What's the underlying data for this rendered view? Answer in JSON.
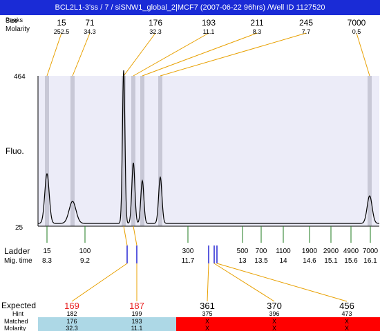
{
  "title": "BCL2L1-3'ss / 7 / siSNW1_global_2|MCF7 (2007-06-22 96hrs) /Well ID 1127520",
  "top_labels": {
    "size": "Size",
    "peaks": "Peaks",
    "molarity": "Molarity"
  },
  "peaks": [
    {
      "size": "15",
      "molarity": "252.5"
    },
    {
      "size": "71",
      "molarity": "34.3"
    },
    {
      "size": "176",
      "molarity": "32.3"
    },
    {
      "size": "193",
      "molarity": "11.1"
    },
    {
      "size": "211",
      "molarity": "8.3"
    },
    {
      "size": "245",
      "molarity": "7.7"
    },
    {
      "size": "7000",
      "molarity": "0.5"
    }
  ],
  "y_axis": {
    "label": "Fluo.",
    "max_label": "464",
    "min_label": "25"
  },
  "ladder_labels": {
    "ladder": "Ladder",
    "mig_time": "Mig. time"
  },
  "ladder": [
    {
      "size": "15",
      "time": "8.3"
    },
    {
      "size": "100",
      "time": "9.2"
    },
    {
      "size": "300",
      "time": "11.7"
    },
    {
      "size": "500",
      "time": "13"
    },
    {
      "size": "700",
      "time": "13.5"
    },
    {
      "size": "1100",
      "time": "14"
    },
    {
      "size": "1900",
      "time": "14.6"
    },
    {
      "size": "2900",
      "time": "15.1"
    },
    {
      "size": "4900",
      "time": "15.6"
    },
    {
      "size": "7000",
      "time": "16.1"
    }
  ],
  "bottom_labels": {
    "expected": "Expected",
    "hint": "Hint",
    "matched": "Matched",
    "molarity": "Molarity"
  },
  "expected": [
    {
      "expected": "169",
      "hint": "182",
      "matched": "176",
      "molarity": "32.3",
      "status": "matched"
    },
    {
      "expected": "187",
      "hint": "199",
      "matched": "193",
      "molarity": "11.1",
      "status": "matched"
    },
    {
      "expected": "361",
      "hint": "375",
      "matched": "X",
      "molarity": "X",
      "status": "missing"
    },
    {
      "expected": "370",
      "hint": "396",
      "matched": "X",
      "molarity": "X",
      "status": "missing"
    },
    {
      "expected": "456",
      "hint": "473",
      "matched": "X",
      "molarity": "X",
      "status": "missing"
    }
  ],
  "colors": {
    "title_bg": "#1a2bd6",
    "plot_bg": "#ececf8",
    "peak_band": "#c8c8d6",
    "connector": "#e8a000",
    "ladder_tick": "#1e7a1e",
    "expected_tick": "#0000cc",
    "expected_red_text": "#e82020",
    "matched_bg": "#add8e6",
    "missing_bg": "#ff0000",
    "trace": "#000000"
  }
}
